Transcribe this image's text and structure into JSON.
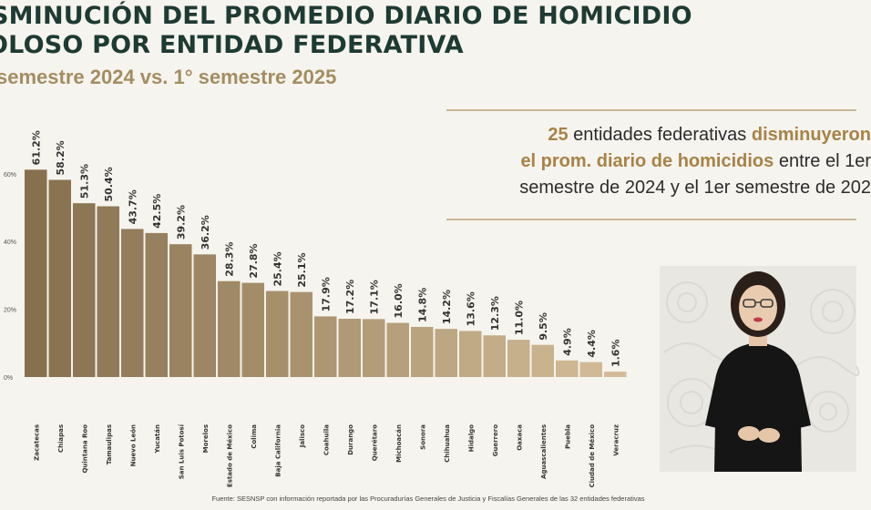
{
  "header": {
    "title_line1": "SMINUCIÓN DEL PROMEDIO DIARIO DE HOMICIDIO",
    "title_line2": "OLOSO POR ENTIDAD FEDERATIVA",
    "subtitle": "semestre 2024 vs. 1° semestre 2025"
  },
  "callout": {
    "number": "25",
    "text1": " entidades federativas ",
    "highlight1": "disminuyeron",
    "highlight2": "el prom. diario de homicidios",
    "text2": " entre el 1er",
    "text3": "semestre de 2024 y el 1er semestre de 202"
  },
  "colors": {
    "title": "#1d3b32",
    "subtitle": "#a48d62",
    "highlight": "#a88248",
    "bar_dark": "#86704e",
    "bar_light": "#d3bc97"
  },
  "chart_data": {
    "type": "bar",
    "y_ticks": [
      "60%",
      "40%",
      "20%",
      "0%"
    ],
    "ylim": [
      0,
      70
    ],
    "grid": false,
    "categories": [
      "Zacatecas",
      "Chiapas",
      "Quintana Roo",
      "Tamaulipas",
      "Nuevo León",
      "Yucatán",
      "San Luis Potosí",
      "Morelos",
      "Estado de México",
      "Colima",
      "Baja California",
      "Jalisco",
      "Coahuila",
      "Durango",
      "Querétaro",
      "Michoacán",
      "Sonora",
      "Chihuahua",
      "Hidalgo",
      "Guerrero",
      "Oaxaca",
      "Aguascalientes",
      "Puebla",
      "Ciudad de México",
      "Veracruz"
    ],
    "values": [
      61.2,
      58.2,
      51.3,
      50.4,
      43.7,
      42.5,
      39.2,
      36.2,
      28.3,
      27.8,
      25.4,
      25.1,
      17.9,
      17.2,
      17.1,
      16.0,
      14.8,
      14.2,
      13.6,
      12.3,
      11.0,
      9.5,
      4.9,
      4.4,
      1.6
    ],
    "value_labels": [
      "61.2%",
      "58.2%",
      "51.3%",
      "50.4%",
      "43.7%",
      "42.5%",
      "39.2%",
      "36.2%",
      "28.3%",
      "27.8%",
      "25.4%",
      "25.1%",
      "17.9%",
      "17.2%",
      "17.1%",
      "16.0%",
      "14.8%",
      "14.2%",
      "13.6%",
      "12.3%",
      "11.0%",
      "9.5%",
      "4.9%",
      "4.4%",
      "1.6%"
    ]
  },
  "source": "Fuente: SESNSP con información reportada por las Procuradurías Generales de Justicia y Fiscalías Generales de las 32 entidades federativas"
}
